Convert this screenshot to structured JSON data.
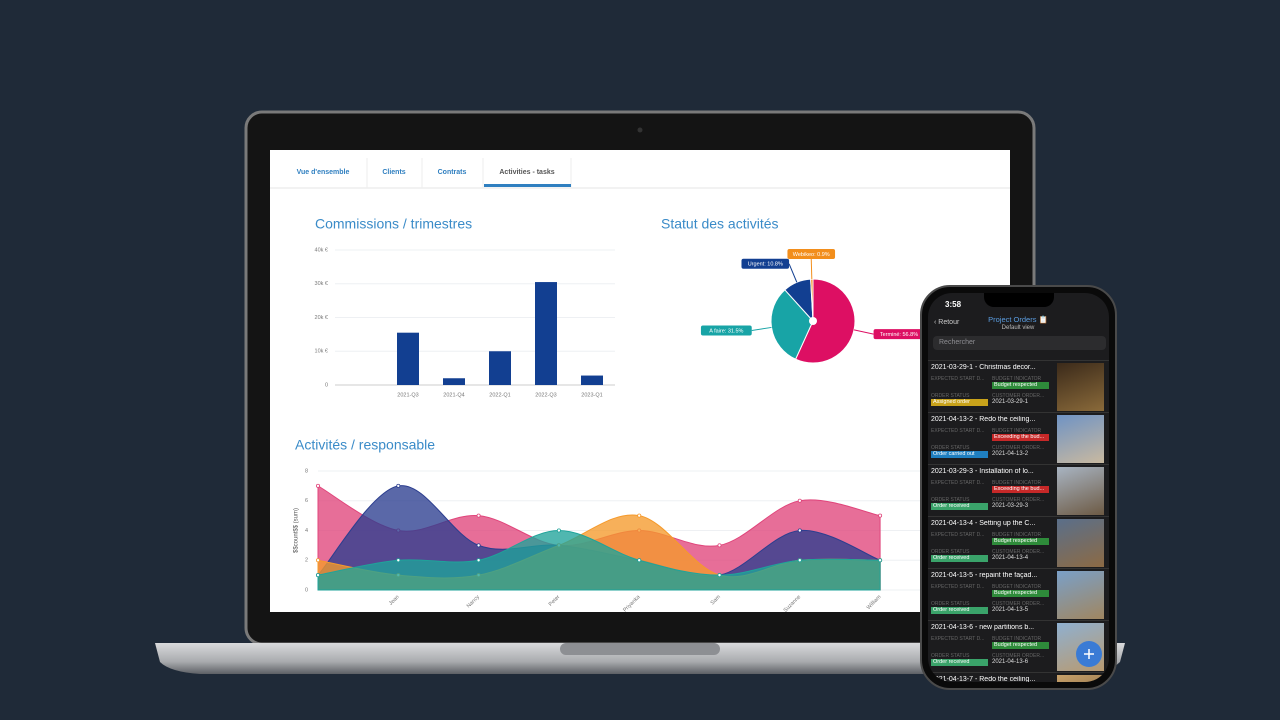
{
  "tabs": [
    "Vue d'ensemble",
    "Clients",
    "Contrats",
    "Activities - tasks"
  ],
  "chart_data": [
    {
      "type": "bar",
      "title": "Commissions / trimestres",
      "categories": [
        "2021-Q3",
        "2021-Q4",
        "2022-Q1",
        "2022-Q3",
        "2023-Q1"
      ],
      "values": [
        15500,
        2000,
        10000,
        30500,
        2800
      ],
      "color": "#123f91",
      "ylim": [
        0,
        40000
      ],
      "yticks": [
        0,
        {
          "value": 10000,
          "label": "10k €"
        },
        {
          "value": 20000,
          "label": "20k €"
        },
        {
          "value": 30000,
          "label": "30k €"
        },
        {
          "value": 40000,
          "label": "40k €"
        }
      ],
      "grid": true
    },
    {
      "type": "pie",
      "title": "Statut des activités",
      "values": [
        56.8,
        31.5,
        10.8,
        0.9
      ],
      "value_labels": [
        "Terminé: 56.8%",
        "A faire: 31.5%",
        "Urgent: 10.8%",
        "Webikeo: 0.9%"
      ],
      "colors": [
        "#dd0f63",
        "#18a4a6",
        "#123f91",
        "#f28e1c"
      ]
    },
    {
      "type": "area",
      "title": "Activités / responsable",
      "y_label": "$$count$$ (sum)",
      "categories": [
        null,
        "Jean",
        "Nancy",
        "Peter",
        "Priyanka",
        "Sam",
        "Suzanne",
        "William"
      ],
      "series": [
        {
          "color": "#e0457b",
          "values": [
            7,
            4,
            5,
            3,
            4,
            3,
            6,
            5
          ]
        },
        {
          "color": "#2c3e8f",
          "values": [
            1,
            7,
            3,
            3,
            2,
            1,
            4,
            2
          ]
        },
        {
          "color": "#f59a2b",
          "values": [
            2,
            1,
            1,
            3,
            5,
            1,
            2,
            2
          ]
        },
        {
          "color": "#1fa39a",
          "values": [
            1,
            2,
            2,
            4,
            2,
            1,
            2,
            2
          ]
        }
      ],
      "ylim": [
        0,
        8
      ],
      "yticks": [
        0,
        2,
        4,
        6,
        8
      ],
      "grid": true
    }
  ],
  "phone": {
    "time": "3:58",
    "back": "Retour",
    "title": "Project Orders 📋",
    "subtitle": "Default view",
    "search": "Rechercher",
    "field_labels": [
      "EXPECTED START D...",
      "BUDGET INDICATOR",
      "ORDER STATUS",
      "CUSTOMER ORDER..."
    ],
    "items": [
      {
        "title": "2021-03-29-1 - Christmas decor...",
        "budget": "Budget respected",
        "budget_color": "#2e8b3a",
        "status": "Assigned order",
        "status_color": "#c8a21a",
        "order": "2021-03-29-1"
      },
      {
        "title": "2021-04-13-2 - Redo the ceiling...",
        "budget": "Exceeding the bud...",
        "budget_color": "#c62828",
        "status": "Order carried out",
        "status_color": "#1f7fc0",
        "order": "2021-04-13-2"
      },
      {
        "title": "2021-03-29-3 - Installation of lo...",
        "budget": "Exceeding the bud...",
        "budget_color": "#c62828",
        "status": "Order received",
        "status_color": "#3aa36a",
        "order": "2021-03-29-3"
      },
      {
        "title": "2021-04-13-4 - Setting up the C...",
        "budget": "Budget respected",
        "budget_color": "#2e8b3a",
        "status": "Order received",
        "status_color": "#3aa36a",
        "order": "2021-04-13-4"
      },
      {
        "title": "2021-04-13-5 - repaint the façad...",
        "budget": "Budget respected",
        "budget_color": "#2e8b3a",
        "status": "Order received",
        "status_color": "#3aa36a",
        "order": "2021-04-13-5"
      },
      {
        "title": "2021-04-13-6 - new partitions b...",
        "budget": "Budget respected",
        "budget_color": "#2e8b3a",
        "status": "Order received",
        "status_color": "#3aa36a",
        "order": "2021-04-13-6"
      },
      {
        "title": "2021-04-13-7 - Redo the ceiling..."
      }
    ]
  }
}
